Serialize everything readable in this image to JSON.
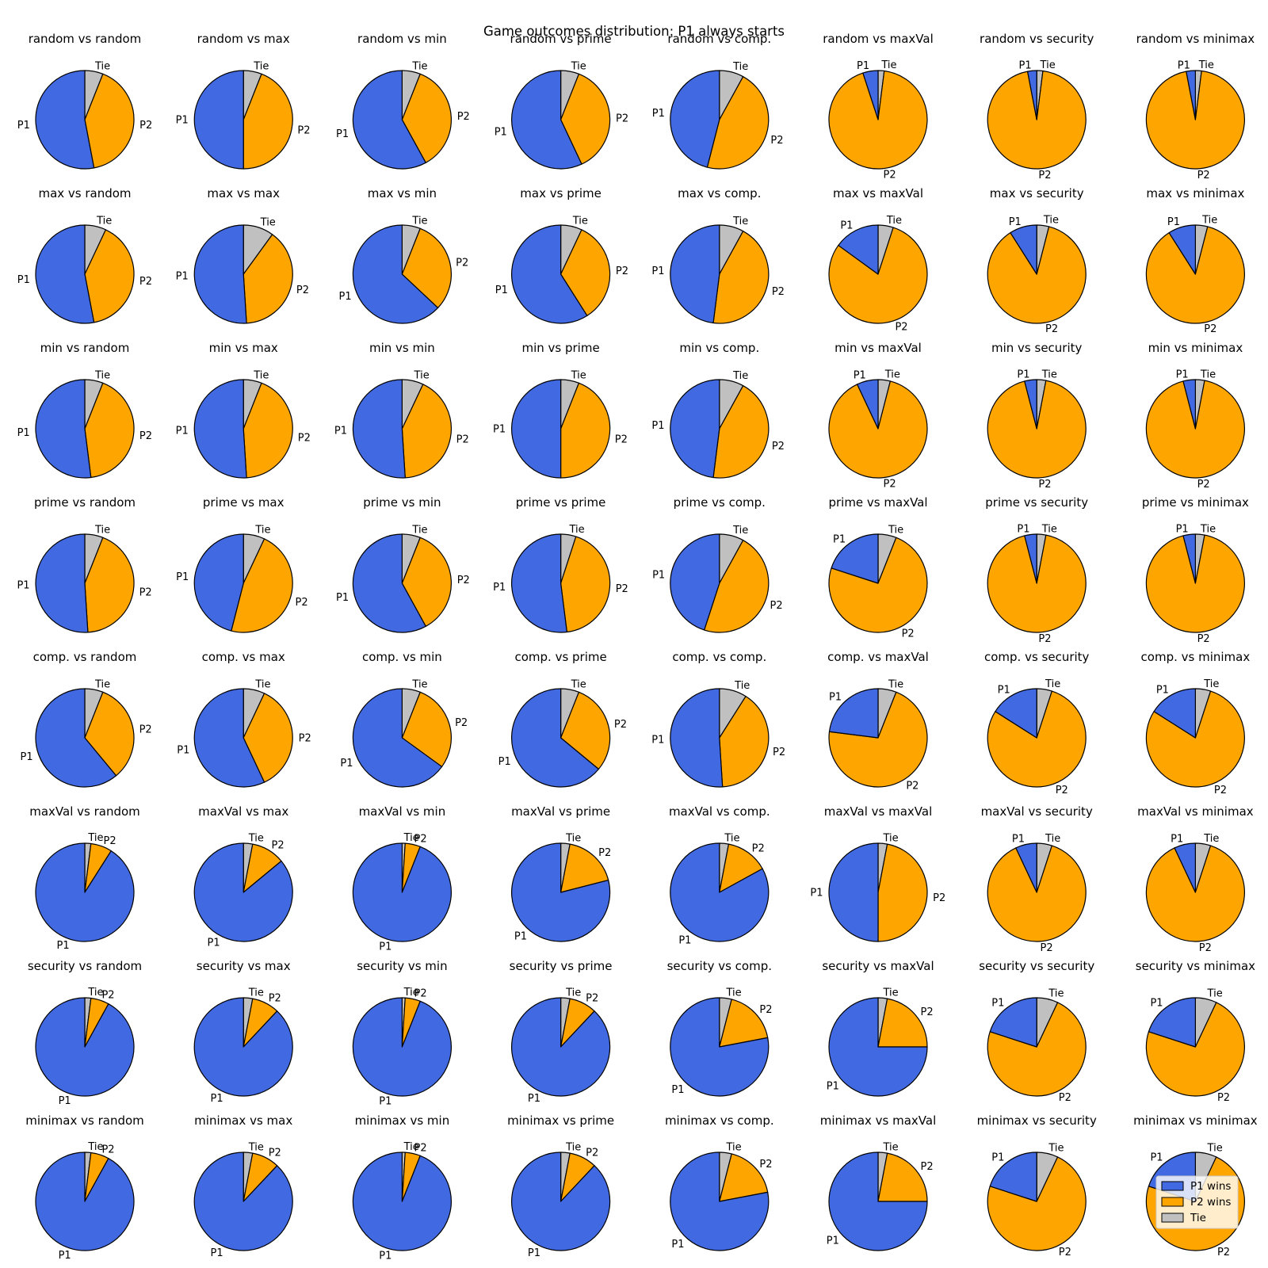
{
  "chart_data": {
    "type": "pie",
    "title": "Game outcomes distribution: P1 always starts",
    "players": [
      "random",
      "max",
      "min",
      "prime",
      "comp.",
      "maxVal",
      "security",
      "minimax"
    ],
    "slice_order": [
      "Tie",
      "P2",
      "P1"
    ],
    "slice_labels": {
      "p1": "P1",
      "p2": "P2",
      "tie": "Tie"
    },
    "colors": {
      "p1": "#4169e1",
      "p2": "#ffa500",
      "tie": "#c0c0c0"
    },
    "legend": {
      "position": "lower-right",
      "entries": [
        {
          "key": "p1",
          "label": "P1 wins"
        },
        {
          "key": "p2",
          "label": "P2 wins"
        },
        {
          "key": "tie",
          "label": "Tie"
        }
      ]
    },
    "matchups": [
      [
        {
          "tie": 6,
          "p2": 41,
          "p1": 53
        },
        {
          "tie": 6,
          "p2": 44,
          "p1": 50
        },
        {
          "tie": 6,
          "p2": 36,
          "p1": 58
        },
        {
          "tie": 6,
          "p2": 37,
          "p1": 57
        },
        {
          "tie": 8,
          "p2": 46,
          "p1": 46
        },
        {
          "tie": 2,
          "p2": 93,
          "p1": 5
        },
        {
          "tie": 2,
          "p2": 95,
          "p1": 3
        },
        {
          "tie": 2,
          "p2": 95,
          "p1": 3
        }
      ],
      [
        {
          "tie": 7,
          "p2": 40,
          "p1": 53
        },
        {
          "tie": 10,
          "p2": 39,
          "p1": 51
        },
        {
          "tie": 6,
          "p2": 31,
          "p1": 63
        },
        {
          "tie": 7,
          "p2": 34,
          "p1": 59
        },
        {
          "tie": 8,
          "p2": 44,
          "p1": 48
        },
        {
          "tie": 5,
          "p2": 80,
          "p1": 15
        },
        {
          "tie": 4,
          "p2": 87,
          "p1": 9
        },
        {
          "tie": 4,
          "p2": 87,
          "p1": 9
        }
      ],
      [
        {
          "tie": 6,
          "p2": 42,
          "p1": 52
        },
        {
          "tie": 6,
          "p2": 43,
          "p1": 51
        },
        {
          "tie": 7,
          "p2": 42,
          "p1": 51
        },
        {
          "tie": 6,
          "p2": 44,
          "p1": 50
        },
        {
          "tie": 8,
          "p2": 44,
          "p1": 48
        },
        {
          "tie": 4,
          "p2": 89,
          "p1": 7
        },
        {
          "tie": 3,
          "p2": 93,
          "p1": 4
        },
        {
          "tie": 3,
          "p2": 93,
          "p1": 4
        }
      ],
      [
        {
          "tie": 6,
          "p2": 43,
          "p1": 51
        },
        {
          "tie": 7,
          "p2": 47,
          "p1": 46
        },
        {
          "tie": 6,
          "p2": 36,
          "p1": 58
        },
        {
          "tie": 5,
          "p2": 43,
          "p1": 52
        },
        {
          "tie": 8,
          "p2": 47,
          "p1": 45
        },
        {
          "tie": 6,
          "p2": 74,
          "p1": 20
        },
        {
          "tie": 3,
          "p2": 93,
          "p1": 4
        },
        {
          "tie": 3,
          "p2": 93,
          "p1": 4
        }
      ],
      [
        {
          "tie": 6,
          "p2": 33,
          "p1": 61
        },
        {
          "tie": 7,
          "p2": 36,
          "p1": 57
        },
        {
          "tie": 6,
          "p2": 29,
          "p1": 65
        },
        {
          "tie": 6,
          "p2": 30,
          "p1": 64
        },
        {
          "tie": 9,
          "p2": 40,
          "p1": 51
        },
        {
          "tie": 6,
          "p2": 71,
          "p1": 23
        },
        {
          "tie": 5,
          "p2": 79,
          "p1": 16
        },
        {
          "tie": 5,
          "p2": 79,
          "p1": 16
        }
      ],
      [
        {
          "tie": 2,
          "p2": 7,
          "p1": 91
        },
        {
          "tie": 3,
          "p2": 11,
          "p1": 86
        },
        {
          "tie": 1,
          "p2": 5,
          "p1": 94
        },
        {
          "tie": 3,
          "p2": 18,
          "p1": 79
        },
        {
          "tie": 3,
          "p2": 14,
          "p1": 83
        },
        {
          "tie": 3,
          "p2": 47,
          "p1": 50
        },
        {
          "tie": 5,
          "p2": 88,
          "p1": 7
        },
        {
          "tie": 5,
          "p2": 88,
          "p1": 7
        }
      ],
      [
        {
          "tie": 2,
          "p2": 6,
          "p1": 92
        },
        {
          "tie": 3,
          "p2": 9,
          "p1": 88
        },
        {
          "tie": 1,
          "p2": 5,
          "p1": 94
        },
        {
          "tie": 3,
          "p2": 9,
          "p1": 88
        },
        {
          "tie": 4,
          "p2": 18,
          "p1": 78
        },
        {
          "tie": 3,
          "p2": 22,
          "p1": 75
        },
        {
          "tie": 7,
          "p2": 73,
          "p1": 20
        },
        {
          "tie": 7,
          "p2": 73,
          "p1": 20
        }
      ],
      [
        {
          "tie": 2,
          "p2": 6,
          "p1": 92
        },
        {
          "tie": 3,
          "p2": 9,
          "p1": 88
        },
        {
          "tie": 1,
          "p2": 5,
          "p1": 94
        },
        {
          "tie": 3,
          "p2": 9,
          "p1": 88
        },
        {
          "tie": 4,
          "p2": 18,
          "p1": 78
        },
        {
          "tie": 3,
          "p2": 22,
          "p1": 75
        },
        {
          "tie": 7,
          "p2": 73,
          "p1": 20
        },
        {
          "tie": 7,
          "p2": 73,
          "p1": 20
        }
      ]
    ]
  }
}
